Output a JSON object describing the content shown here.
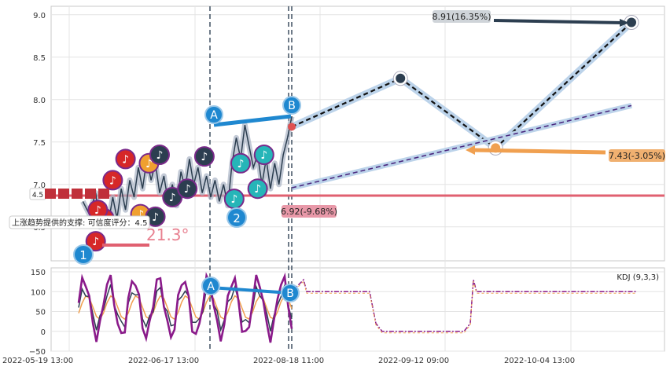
{
  "chart_data": [
    {
      "type": "line",
      "panel": "price",
      "y_ticks": [
        "6.5",
        "7.0",
        "7.5",
        "8.0",
        "8.5",
        "9.0"
      ],
      "ylim": [
        6.1,
        9.1
      ],
      "grid": true,
      "date_ticks": [
        "2022-05-19 13:00",
        "2022-06-17 13:00",
        "2022-08-18 11:00",
        "2022-09-12 09:00",
        "2022-10-04 13:00"
      ],
      "annotations": {
        "top_target": "8.91(16.35%)",
        "mid_target": "7.43(-3.05%)",
        "support_price": "6.92(-9.68%)",
        "support_info": "上涨趋势提供的支撑: 可信度评分：4.5",
        "support_score": "4.5",
        "angle": "21.3°",
        "point_a": "A",
        "point_b": "B",
        "wave_1": "1",
        "wave_2": "2"
      },
      "support_line_level": 6.96,
      "price_series": [
        [
          0.02,
          6.8
        ],
        [
          0.05,
          6.65
        ],
        [
          0.08,
          6.9
        ],
        [
          0.1,
          6.5
        ],
        [
          0.12,
          6.75
        ],
        [
          0.14,
          6.55
        ],
        [
          0.16,
          6.85
        ],
        [
          0.18,
          6.6
        ],
        [
          0.2,
          6.95
        ],
        [
          0.22,
          6.7
        ],
        [
          0.24,
          7.05
        ],
        [
          0.26,
          6.85
        ],
        [
          0.28,
          7.2
        ],
        [
          0.3,
          6.95
        ],
        [
          0.32,
          7.3
        ],
        [
          0.34,
          7.05
        ],
        [
          0.36,
          7.25
        ],
        [
          0.38,
          6.9
        ],
        [
          0.4,
          7.1
        ],
        [
          0.42,
          6.8
        ],
        [
          0.44,
          7.0
        ],
        [
          0.46,
          6.75
        ],
        [
          0.48,
          7.15
        ],
        [
          0.5,
          6.95
        ],
        [
          0.52,
          7.3
        ],
        [
          0.54,
          7.0
        ],
        [
          0.56,
          7.2
        ],
        [
          0.58,
          6.9
        ],
        [
          0.6,
          7.1
        ],
        [
          0.62,
          6.85
        ],
        [
          0.64,
          7.05
        ],
        [
          0.66,
          6.8
        ],
        [
          0.68,
          7.0
        ],
        [
          0.7,
          6.75
        ],
        [
          0.72,
          7.25
        ],
        [
          0.74,
          7.55
        ],
        [
          0.76,
          7.3
        ],
        [
          0.78,
          7.7
        ],
        [
          0.8,
          7.45
        ],
        [
          0.82,
          7.2
        ],
        [
          0.84,
          7.35
        ],
        [
          0.86,
          7.0
        ],
        [
          0.88,
          7.3
        ],
        [
          0.9,
          6.95
        ],
        [
          0.92,
          7.25
        ],
        [
          0.94,
          7.0
        ],
        [
          0.96,
          7.35
        ],
        [
          0.98,
          7.55
        ],
        [
          1.0,
          7.8
        ]
      ],
      "forecast_points": [
        [
          0.0,
          7.68
        ],
        [
          0.32,
          8.25
        ],
        [
          0.6,
          7.43
        ],
        [
          1.0,
          8.91
        ]
      ],
      "music_markers": [
        {
          "i": 0.08,
          "y": 6.33,
          "c": "#d62728"
        },
        {
          "i": 0.12,
          "y": 6.6,
          "c": "#d62728"
        },
        {
          "i": 0.09,
          "y": 6.7,
          "c": "#d62728"
        },
        {
          "i": 0.16,
          "y": 7.05,
          "c": "#d62728"
        },
        {
          "i": 0.22,
          "y": 7.3,
          "c": "#d62728"
        },
        {
          "i": 0.29,
          "y": 6.65,
          "c": "#f0a030"
        },
        {
          "i": 0.33,
          "y": 7.25,
          "c": "#f0a030"
        },
        {
          "i": 0.36,
          "y": 6.62,
          "c": "#2c3e50"
        },
        {
          "i": 0.38,
          "y": 7.35,
          "c": "#2c3e50"
        },
        {
          "i": 0.44,
          "y": 6.85,
          "c": "#2c3e50"
        },
        {
          "i": 0.51,
          "y": 6.95,
          "c": "#2c3e50"
        },
        {
          "i": 0.59,
          "y": 7.33,
          "c": "#2c3e50"
        },
        {
          "i": 0.73,
          "y": 6.83,
          "c": "#26b5b8"
        },
        {
          "i": 0.76,
          "y": 7.25,
          "c": "#26b5b8"
        },
        {
          "i": 0.84,
          "y": 6.95,
          "c": "#26b5b8"
        },
        {
          "i": 0.87,
          "y": 7.35,
          "c": "#26b5b8"
        }
      ]
    },
    {
      "type": "line",
      "panel": "indicator",
      "legend": "KDJ (9,3,3)",
      "y_ticks": [
        "150",
        "100",
        "50",
        "0",
        "−50"
      ],
      "ylim": [
        -50,
        160
      ],
      "grid": true,
      "point_a": "A",
      "point_b": "B"
    }
  ]
}
